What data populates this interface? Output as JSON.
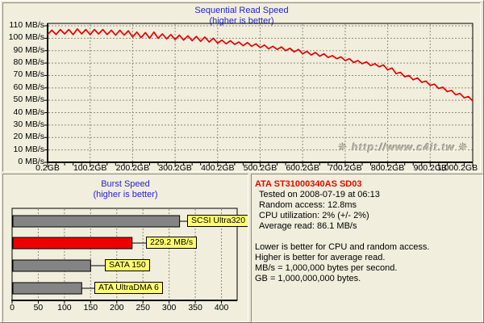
{
  "watermark": "❋ http://www.c4it.tw ❋",
  "colors": {
    "title_blue": "#2424cc",
    "info_title_red": "#e00b00",
    "line_red": "#e60000",
    "bar_gray": "#848484",
    "bar_red": "#ee0000",
    "label_yellow": "#ffff70",
    "panel_bg": "#f1eedd",
    "window_bg": "#ece9d8",
    "grid_gray": "#8f8c80"
  },
  "chart_data": [
    {
      "type": "line",
      "title": "Sequential Read Speed",
      "subtitle": "(higher is better)",
      "line_color": "#e60000",
      "grid": true,
      "xlim": [
        0,
        1000
      ],
      "ylim": [
        0,
        110
      ],
      "y_tick_labels": [
        "0 MB/s",
        "10 MB/s",
        "20 MB/s",
        "30 MB/s",
        "40 MB/s",
        "50 MB/s",
        "60 MB/s",
        "70 MB/s",
        "80 MB/s",
        "90 MB/s",
        "100 MB/s",
        "110 MB/s"
      ],
      "x_tick_labels": [
        "0.2GB",
        "100.2GB",
        "200.2GB",
        "300.2GB",
        "400.2GB",
        "500.2GB",
        "600.2GB",
        "700.2GB",
        "800.2GB",
        "900.2GB",
        "1,000.2GB"
      ],
      "x_start": 0,
      "x_step": 10,
      "x_unit": "GB",
      "y_unit": "MB/s",
      "values": [
        103,
        106.5,
        103,
        107,
        103.5,
        107,
        103,
        107.5,
        103.5,
        107,
        103,
        107,
        103.5,
        107,
        103,
        106.5,
        102.5,
        106.5,
        102.5,
        106,
        101,
        105,
        100.5,
        104.5,
        100,
        105,
        100,
        103.5,
        99.5,
        103,
        99,
        102.5,
        98.5,
        102,
        98,
        101.5,
        97.5,
        101,
        97,
        100,
        96,
        98.5,
        95.5,
        98,
        95,
        97,
        94,
        96.5,
        93.5,
        95.5,
        92.5,
        94.5,
        91.5,
        93.5,
        91,
        93,
        90,
        92,
        89,
        91,
        87.5,
        89.5,
        86.5,
        88.5,
        85.5,
        87.5,
        84.5,
        86,
        83.5,
        85,
        82,
        83.5,
        80.5,
        82,
        79.5,
        81,
        78,
        79.5,
        77,
        78.5,
        74.5,
        76,
        71.5,
        72.5,
        69,
        70,
        66.5,
        68,
        64.5,
        65.5,
        62,
        63,
        59.5,
        60.5,
        57,
        58,
        54.5,
        55.5,
        52,
        53,
        49.5
      ]
    },
    {
      "type": "bar",
      "orientation": "horizontal",
      "title": "Burst Speed",
      "subtitle": "(higher is better)",
      "grid": true,
      "xlim": [
        0,
        430
      ],
      "x_tick_labels": [
        "0",
        "50",
        "100",
        "150",
        "200",
        "250",
        "300",
        "350",
        "400"
      ],
      "x_tick_values": [
        0,
        50,
        100,
        150,
        200,
        250,
        300,
        350,
        400
      ],
      "bars": [
        {
          "label": "SCSI Ultra320",
          "value": 320,
          "color": "#848484"
        },
        {
          "label": "229.2 MB/s",
          "value": 229.2,
          "color": "#ee0000"
        },
        {
          "label": "SATA 150",
          "value": 150,
          "color": "#848484"
        },
        {
          "label": "ATA UltraDMA 6",
          "value": 133,
          "color": "#848484"
        }
      ]
    }
  ],
  "info": {
    "title": "ATA ST31000340AS SD03",
    "details": [
      "Tested on 2008-07-19 at 06:13",
      "Random access: 12.8ms",
      "CPU utilization: 2% (+/- 2%)",
      "Average read: 86.1 MB/s"
    ],
    "notes": [
      "Lower is better for CPU and random access.",
      "Higher is better for average read.",
      "MB/s = 1,000,000 bytes per second.",
      "GB = 1,000,000,000 bytes."
    ]
  }
}
